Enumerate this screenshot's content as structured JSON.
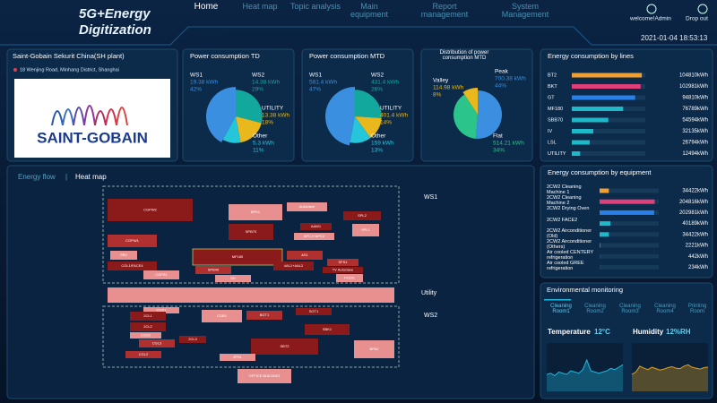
{
  "header": {
    "title_line1": "5G+Energy",
    "title_line2": "Digitization",
    "nav": [
      "Home",
      "Heat map",
      "Topic analysis",
      "Main equipment",
      "Report management",
      "System Management"
    ],
    "user": "welcome!Admin",
    "logout": "Drop out",
    "datetime": "2021-01-04  18:53:13"
  },
  "plant": {
    "title": "Saint-Gobain Sekurit China(SH plant)",
    "address": "18 Wenjing Road, Minhang District, Shanghai",
    "logo": "SAINT-GOBAIN"
  },
  "heatmap": {
    "tabs": [
      "Energy flow",
      "Heat map"
    ],
    "zones": [
      "WS1",
      "Utility",
      "WS2"
    ],
    "blocks": [
      "CGPW2",
      "BPK1",
      "Autoclave",
      "SPL2",
      "AAW1",
      "SPB70",
      "CGPW1",
      "MF180",
      "AS1",
      "SPL1",
      "PB2",
      "CGL1/FACE4",
      "CGPS1",
      "SPB40",
      "GK",
      "4AL1+AAL2",
      "SFS1",
      "TV Autoclave",
      "FOOC",
      "APC1+APC2",
      "CGS1",
      "2CL1",
      "CGB1",
      "BGT1",
      "SGT1",
      "2CL2",
      "CGS2",
      "SBK1",
      "2CL3",
      "CGL3",
      "SBT2",
      "CGL2",
      "2PS1",
      "BPA2"
    ],
    "office": "OFFICE BUILDING"
  },
  "environment": {
    "title": "Environmental monitoring",
    "rooms": [
      "Cleaning Room1",
      "Cleaning Room2",
      "Cleaning Room3",
      "Cleaning Room4",
      "Printing Room"
    ]
  },
  "chart_data": [
    {
      "type": "pie",
      "title": "Power consumption TD",
      "categories": [
        "WS1",
        "WS2",
        "UTILITY",
        "Other"
      ],
      "values": [
        42,
        29,
        18,
        11
      ],
      "value_labels": [
        "42%",
        "29%",
        "18%",
        "11%"
      ],
      "amounts": [
        "19.38 kWh",
        "14.38 kWh",
        "13.38 kWh",
        "5.3 kWh"
      ],
      "colors": [
        "#3a8fe0",
        "#13a89e",
        "#e8b81c",
        "#26c6da"
      ]
    },
    {
      "type": "pie",
      "title": "Power consumption MTD",
      "categories": [
        "WS1",
        "WS2",
        "UTILITY",
        "Other"
      ],
      "values": [
        47,
        26,
        14,
        13
      ],
      "value_labels": [
        "47%",
        "26%",
        "14%",
        "13%"
      ],
      "amounts": [
        "581.4 kWh",
        "431.4 kWh",
        "401.4 kWh",
        "159 kWh"
      ],
      "colors": [
        "#3a8fe0",
        "#13a89e",
        "#e8b81c",
        "#26c6da"
      ]
    },
    {
      "type": "pie",
      "title": "Distribution of power consumption MTD",
      "categories": [
        "Valley",
        "Peak",
        "Flat"
      ],
      "values": [
        8,
        44,
        34
      ],
      "value_labels": [
        "8%",
        "44%",
        "34%"
      ],
      "amounts": [
        "114.98 kWh",
        "700.38 kWh",
        "514.21 kWh"
      ],
      "colors": [
        "#e8b81c",
        "#3a8fe0",
        "#2bc48a"
      ]
    },
    {
      "type": "bar",
      "orientation": "horizontal",
      "title": "Energy consumption by lines",
      "categories": [
        "BT2",
        "BKT",
        "GT",
        "MF180",
        "SBB70",
        "IV",
        "LSL",
        "UTILITY"
      ],
      "values": [
        104810,
        102981,
        94810,
        76789,
        54594,
        32135,
        26794,
        12494
      ],
      "value_labels": [
        "104810kWh",
        "102981kWh",
        "94810kWh",
        "76789kWh",
        "54594kWh",
        "32135kWh",
        "26794kWh",
        "12494kWh"
      ],
      "colors": [
        "#f0a030",
        "#e0407a",
        "#2a80e8",
        "#1fb8c8",
        "#1fb8c8",
        "#1fb8c8",
        "#1fb8c8",
        "#1fb8c8"
      ],
      "xlim": [
        0,
        110000
      ]
    },
    {
      "type": "bar",
      "orientation": "horizontal",
      "title": "Energy consumption by equipment",
      "categories": [
        "2CW2 Cleaning Machine 1",
        "2CW2 Cleaning Machine 2",
        "2CW2 Drying Oven",
        "2CW2 FACE2",
        "2CW2 Airconditioner (Old)",
        "2CW2 Airconditioner (Others)",
        "Air cooled CENTERY refrigeration",
        "Air cooled GREE refrigeration"
      ],
      "values": [
        34422,
        204816,
        202981,
        40189,
        34422,
        2221,
        442,
        234
      ],
      "value_labels": [
        "34422kWh",
        "204816kWh",
        "202981kWh",
        "40189kWh",
        "34422kWh",
        "2221kWh",
        "442kWh",
        "234kWh"
      ],
      "colors": [
        "#f0a030",
        "#e0407a",
        "#2a80e8",
        "#1fb8c8",
        "#1fb8c8",
        "#1fb8c8",
        "#1fb8c8",
        "#1fb8c8"
      ],
      "xlim": [
        0,
        220000
      ]
    },
    {
      "type": "area",
      "name": "Temperature",
      "reading": "12°C",
      "values": [
        14,
        15,
        13,
        16,
        15,
        14,
        17,
        16,
        15,
        18,
        26,
        17,
        16,
        15,
        16,
        17,
        19,
        18,
        20,
        22
      ],
      "ylim": [
        0,
        40
      ],
      "color": "#1fb8e0"
    },
    {
      "type": "area",
      "name": "Humidity",
      "reading": "12%RH",
      "values": [
        35,
        40,
        52,
        48,
        45,
        50,
        47,
        44,
        46,
        49,
        51,
        48,
        47,
        52,
        55,
        50,
        48,
        46,
        49,
        50
      ],
      "ylim": [
        0,
        100
      ],
      "color": "#e0a020"
    }
  ]
}
